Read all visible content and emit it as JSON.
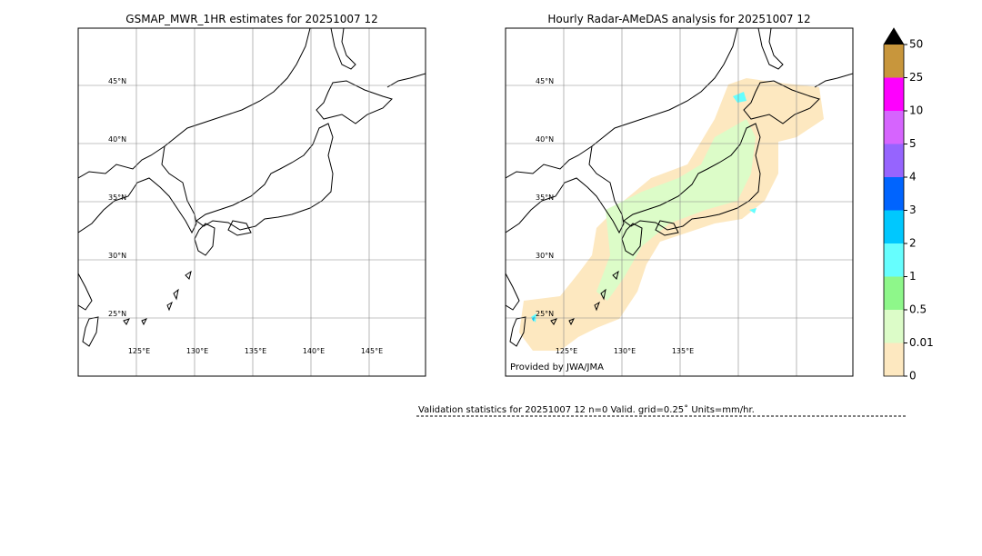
{
  "panels": [
    {
      "title": "GSMAP_MWR_1HR estimates for 20251007 12",
      "lat_labels": [
        "45°N",
        "40°N",
        "35°N",
        "30°N",
        "25°N"
      ],
      "lon_labels": [
        "125°E",
        "130°E",
        "135°E",
        "140°E",
        "145°E"
      ]
    },
    {
      "title": "Hourly Radar-AMeDAS analysis for 20251007 12",
      "lat_labels": [
        "45°N",
        "40°N",
        "35°N",
        "30°N",
        "25°N"
      ],
      "lon_labels": [
        "125°E",
        "130°E",
        "135°E"
      ],
      "credit": "Provided by JWA/JMA"
    }
  ],
  "colorbar": {
    "labels": [
      "0",
      "0.01",
      "0.5",
      "1",
      "2",
      "3",
      "4",
      "5",
      "10",
      "25",
      "50"
    ],
    "colors": [
      "#fde8c0",
      "#dcfcc8",
      "#8ef78a",
      "#66fefe",
      "#00c8fe",
      "#0064fe",
      "#9664fe",
      "#d664fe",
      "#fe00fe",
      "#c8963c"
    ],
    "extend_color": "#000000"
  },
  "validation": "Validation statistics for 20251007 12  n=0 Valid. grid=0.25˚ Units=mm/hr."
}
